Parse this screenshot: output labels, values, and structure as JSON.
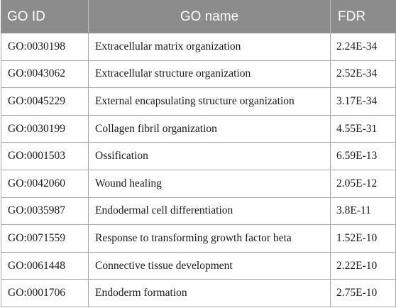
{
  "table": {
    "headers": [
      "GO ID",
      "GO name",
      "FDR"
    ],
    "rows": [
      {
        "id": "GO:0030198",
        "name": "Extracellular matrix organization",
        "fdr": "2.24E-34"
      },
      {
        "id": "GO:0043062",
        "name": "Extracellular structure organization",
        "fdr": "2.52E-34"
      },
      {
        "id": "GO:0045229",
        "name": "External encapsulating structure organization",
        "fdr": "3.17E-34"
      },
      {
        "id": "GO:0030199",
        "name": "Collagen fibril organization",
        "fdr": "4.55E-31"
      },
      {
        "id": "GO:0001503",
        "name": "Ossification",
        "fdr": "6.59E-13"
      },
      {
        "id": "GO:0042060",
        "name": "Wound healing",
        "fdr": "2.05E-12"
      },
      {
        "id": "GO:0035987",
        "name": "Endodermal cell differentiation",
        "fdr": "3.8E-11"
      },
      {
        "id": "GO:0071559",
        "name": "Response to transforming growth factor beta",
        "fdr": "1.52E-10"
      },
      {
        "id": "GO:0061448",
        "name": "Connective tissue development",
        "fdr": "2.22E-10"
      },
      {
        "id": "GO:0001706",
        "name": "Endoderm formation",
        "fdr": "2.75E-10"
      }
    ]
  },
  "colors": {
    "header_bg": "#8c8c8c",
    "header_text": "#ffffff",
    "border": "#a6a6a6"
  }
}
